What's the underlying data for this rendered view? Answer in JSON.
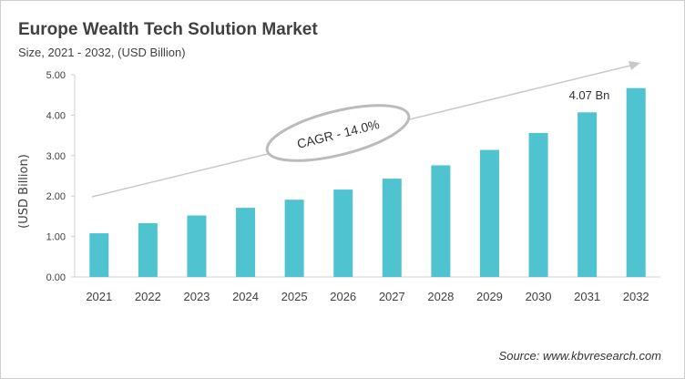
{
  "title": "Europe Wealth Tech Solution Market",
  "subtitle": "Size, 2021 - 2032, (USD Billion)",
  "source": "Source: www.kbvresearch.com",
  "annotations": {
    "cagr": "CAGR - 14.0%",
    "label_2031": "4.07 Bn"
  },
  "colors": {
    "bar": "#4FC3CF",
    "arrow": "#c8c8c8",
    "text": "#404040"
  },
  "chart_data": {
    "type": "bar",
    "title": "Europe Wealth Tech Solution Market",
    "subtitle": "Size, 2021 - 2032, (USD Billion)",
    "xlabel": "",
    "ylabel": "(USD Billion)",
    "ylim": [
      0,
      5
    ],
    "yticks": [
      "0.00",
      "1.00",
      "2.00",
      "3.00",
      "4.00",
      "5.00"
    ],
    "grid": false,
    "categories": [
      "2021",
      "2022",
      "2023",
      "2024",
      "2025",
      "2026",
      "2027",
      "2028",
      "2029",
      "2030",
      "2031",
      "2032"
    ],
    "values": [
      1.08,
      1.33,
      1.52,
      1.71,
      1.91,
      2.16,
      2.43,
      2.76,
      3.14,
      3.56,
      4.07,
      4.67
    ]
  }
}
